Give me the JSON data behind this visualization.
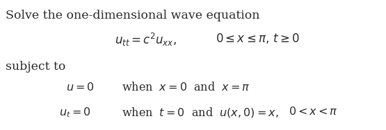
{
  "bg_color": "#ffffff",
  "text_color": "#2a2a2a",
  "title_text": "Solve the one-dimensional wave equation",
  "line1_math": "$u_{tt} = c^2 u_{xx},$",
  "line1_cond": "$0 \\leq x \\leq \\pi,\\, t \\geq 0$",
  "subject_to": "subject to",
  "cond1_left": "$u = 0$",
  "cond1_right": "when  $x = 0$  and  $x = \\pi$",
  "cond2_left": "$u_t = 0$",
  "cond2_right": "when  $t = 0$  and  $u(x, 0) = x,$",
  "cond2_extra": "$0 < x < \\pi$",
  "figwidth": 5.55,
  "figheight": 1.88,
  "dpi": 100
}
